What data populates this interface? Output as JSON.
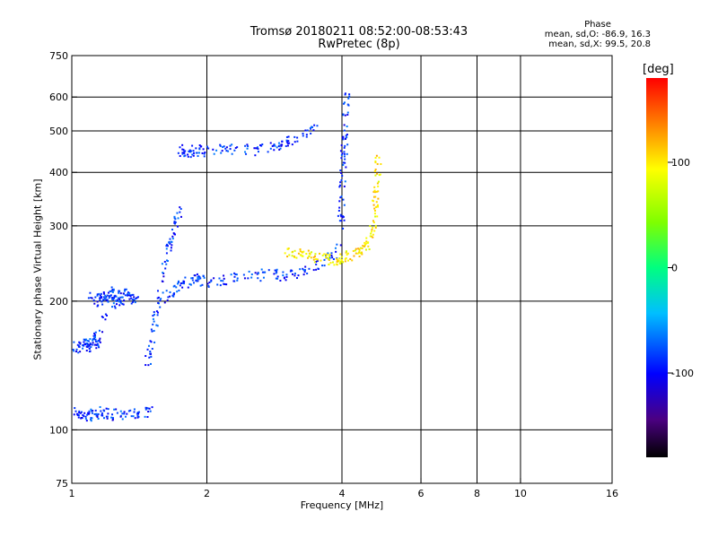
{
  "title_line1": "Tromsø 20180211 08:52:00-08:53:43",
  "title_line2": "RwPretec (8p)",
  "phase": {
    "header": "Phase",
    "line_o": "mean, sd,O: -86.9, 16.3",
    "line_x": "mean, sd,X:  99.5, 20.8"
  },
  "colorbar": {
    "unit": "[deg]",
    "ticks": [
      {
        "v": 100,
        "label": "100"
      },
      {
        "v": 0,
        "label": "0"
      },
      {
        "v": -100,
        "label": "-100"
      }
    ],
    "range": [
      -180,
      180
    ]
  },
  "chart_data": {
    "type": "scatter",
    "xlabel": "Frequency [MHz]",
    "ylabel": "Stationary phase Virtual Height [km]",
    "xscale": "log",
    "yscale": "log",
    "xlim": [
      1,
      16
    ],
    "ylim": [
      75,
      750
    ],
    "xticks": [
      {
        "v": 1,
        "label": "1"
      },
      {
        "v": 2,
        "label": "2"
      },
      {
        "v": 4,
        "label": "4"
      },
      {
        "v": 6,
        "label": "6"
      },
      {
        "v": 8,
        "label": "8"
      },
      {
        "v": 10,
        "label": "10"
      },
      {
        "v": 16,
        "label": "16"
      }
    ],
    "yticks": [
      {
        "v": 75,
        "label": "75"
      },
      {
        "v": 100,
        "label": "100"
      },
      {
        "v": 200,
        "label": "200"
      },
      {
        "v": 300,
        "label": "300"
      },
      {
        "v": 400,
        "label": "400"
      },
      {
        "v": 500,
        "label": "500"
      },
      {
        "v": 600,
        "label": "600"
      },
      {
        "v": 750,
        "label": "750"
      }
    ],
    "grid_x": [
      2,
      4,
      6,
      8,
      10
    ],
    "grid_y": [
      100,
      200,
      300,
      400,
      500,
      600
    ],
    "series": [
      {
        "name": "O",
        "color_by_phase": -87,
        "traces": [
          {
            "f": [
              1.0,
              1.05,
              1.1,
              1.15,
              1.2,
              1.3,
              1.4,
              1.5
            ],
            "h": [
              110,
              109,
              108,
              110,
              109,
              108,
              109,
              110
            ]
          },
          {
            "f": [
              1.02,
              1.05,
              1.08,
              1.1,
              1.12,
              1.15,
              1.2,
              1.25,
              1.3
            ],
            "h": [
              158,
              155,
              160,
              153,
              165,
              158,
              205,
              210,
              200
            ]
          },
          {
            "f": [
              1.1,
              1.15,
              1.2,
              1.25,
              1.3,
              1.35,
              1.4
            ],
            "h": [
              210,
              200,
              205,
              198,
              210,
              202,
              205
            ]
          },
          {
            "f": [
              1.45,
              1.5,
              1.55,
              1.6,
              1.65,
              1.7,
              1.75
            ],
            "h": [
              130,
              160,
              190,
              230,
              270,
              300,
              330
            ]
          },
          {
            "f": [
              1.6,
              1.7,
              1.8,
              1.9,
              2.0,
              2.2,
              2.5,
              2.8,
              3.0,
              3.3,
              3.6,
              3.9
            ],
            "h": [
              200,
              215,
              220,
              225,
              222,
              225,
              228,
              232,
              228,
              235,
              245,
              260
            ]
          },
          {
            "f": [
              1.75,
              1.8,
              1.9,
              2.0,
              2.2,
              2.5,
              2.8,
              3.0,
              3.2,
              3.5
            ],
            "h": [
              450,
              445,
              450,
              448,
              455,
              450,
              460,
              470,
              490,
              505
            ]
          },
          {
            "f": [
              3.95,
              4.0,
              4.02,
              4.05,
              4.08,
              4.1
            ],
            "h": [
              270,
              330,
              400,
              460,
              540,
              610
            ]
          }
        ]
      },
      {
        "name": "X",
        "color_by_phase": 100,
        "traces": [
          {
            "f": [
              3.0,
              3.2,
              3.4,
              3.6,
              3.8,
              4.0,
              4.2,
              4.4,
              4.6,
              4.7,
              4.75,
              4.8,
              4.82
            ],
            "h": [
              262,
              258,
              255,
              252,
              250,
              252,
              255,
              262,
              275,
              300,
              340,
              390,
              430
            ]
          }
        ]
      }
    ]
  }
}
